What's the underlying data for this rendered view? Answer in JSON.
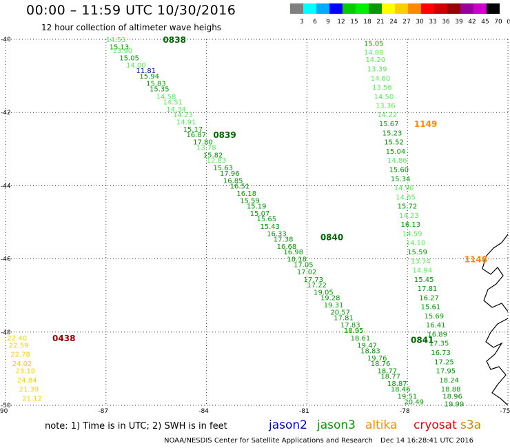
{
  "header": {
    "title": "00:00 – 11:59 UTC 10/30/2016",
    "subtitle": "12 hour collection of altimeter wave heighs"
  },
  "colorbar": {
    "labels": [
      "3",
      "6",
      "9",
      "12",
      "15",
      "18",
      "21",
      "24",
      "27",
      "30",
      "33",
      "36",
      "39",
      "42",
      "45",
      "70",
      "(ft)"
    ],
    "colors": [
      "#808080",
      "#00ffff",
      "#00aaff",
      "#0000ff",
      "#00cc00",
      "#00ee00",
      "#009900",
      "#ffff00",
      "#ffcc00",
      "#ff8800",
      "#ff0000",
      "#cc0000",
      "#990000",
      "#990099",
      "#cc00cc",
      "#000000"
    ]
  },
  "footer": {
    "note": "note: 1) Time is in UTC; 2) SWH is in feet",
    "credit": "NOAA/NESDIS Center for Satellite Applications and Research",
    "timestamp": "Dec 14 16:28:41 UTC 2016"
  },
  "satellites": [
    {
      "name": "jason2",
      "color": "#0000cc"
    },
    {
      "name": "jason3",
      "color": "#009900"
    },
    {
      "name": "altika",
      "color": "#ff8800"
    },
    {
      "name": "cryosat",
      "color": "#ee0000"
    },
    {
      "name": "s3a",
      "color": "#cc8800"
    }
  ],
  "chart_data": {
    "type": "scatter",
    "title": "00:00 – 11:59 UTC 10/30/2016",
    "subtitle": "12 hour collection of altimeter wave heighs",
    "xlabel": "",
    "ylabel": "",
    "xlim": [
      -90,
      -75
    ],
    "ylim": [
      -50,
      -40
    ],
    "xticks": [
      -90,
      -87,
      -84,
      -81,
      -78,
      -75
    ],
    "yticks": [
      -50,
      -48,
      -46,
      -44,
      -42,
      -40
    ],
    "xtick_labels": [
      "-90",
      "-87",
      "-84",
      "-81",
      "-78",
      "-75"
    ],
    "ytick_labels": [
      "-50",
      "-48",
      "-46",
      "-44",
      "-42",
      "-40"
    ],
    "grid": true,
    "passes": [
      {
        "time_labels": [
          {
            "text": "0838",
            "x": -85.3,
            "y": -40.0
          },
          {
            "text": "0839",
            "x": -83.8,
            "y": -42.6
          },
          {
            "text": "0840",
            "x": -80.6,
            "y": -45.4
          },
          {
            "text": "0841",
            "x": -77.9,
            "y": -48.2
          }
        ],
        "label_color": "#006600",
        "points": [
          {
            "v": "14.53",
            "x": -87.0,
            "y": -40.0,
            "c": "#55ee55"
          },
          {
            "v": "15.13",
            "x": -86.9,
            "y": -40.2,
            "c": "#009900"
          },
          {
            "v": "13.90",
            "x": -86.8,
            "y": -40.3,
            "c": "#55ee55"
          },
          {
            "v": "15.05",
            "x": -86.6,
            "y": -40.5,
            "c": "#009900"
          },
          {
            "v": "14.00",
            "x": -86.4,
            "y": -40.7,
            "c": "#55ee55"
          },
          {
            "v": "11.81",
            "x": -86.1,
            "y": -40.85,
            "c": "#0000cc"
          },
          {
            "v": "15.94",
            "x": -86.0,
            "y": -41.0,
            "c": "#009900"
          },
          {
            "v": "15.83",
            "x": -85.8,
            "y": -41.2,
            "c": "#009900"
          },
          {
            "v": "15.35",
            "x": -85.7,
            "y": -41.35,
            "c": "#009900"
          },
          {
            "v": "14.58",
            "x": -85.5,
            "y": -41.55,
            "c": "#55ee55"
          },
          {
            "v": "14.51",
            "x": -85.3,
            "y": -41.7,
            "c": "#55ee55"
          },
          {
            "v": "14.34",
            "x": -85.2,
            "y": -41.9,
            "c": "#55ee55"
          },
          {
            "v": "14.23",
            "x": -85.0,
            "y": -42.05,
            "c": "#55ee55"
          },
          {
            "v": "14.91",
            "x": -84.9,
            "y": -42.25,
            "c": "#55ee55"
          },
          {
            "v": "15.17",
            "x": -84.7,
            "y": -42.45,
            "c": "#009900"
          },
          {
            "v": "16.87",
            "x": -84.6,
            "y": -42.6,
            "c": "#009900"
          },
          {
            "v": "17.80",
            "x": -84.4,
            "y": -42.8,
            "c": "#009900"
          },
          {
            "v": "13.78",
            "x": -84.3,
            "y": -42.95,
            "c": "#55ee55"
          },
          {
            "v": "15.82",
            "x": -84.1,
            "y": -43.15,
            "c": "#009900"
          },
          {
            "v": "12.83",
            "x": -84.0,
            "y": -43.3,
            "c": "#55ee55"
          },
          {
            "v": "15.63",
            "x": -83.8,
            "y": -43.5,
            "c": "#009900"
          },
          {
            "v": "17.96",
            "x": -83.6,
            "y": -43.65,
            "c": "#009900"
          },
          {
            "v": "16.85",
            "x": -83.5,
            "y": -43.85,
            "c": "#009900"
          },
          {
            "v": "16.51",
            "x": -83.3,
            "y": -44.0,
            "c": "#009900"
          },
          {
            "v": "16.18",
            "x": -83.1,
            "y": -44.2,
            "c": "#009900"
          },
          {
            "v": "15.59",
            "x": -83.0,
            "y": -44.4,
            "c": "#009900"
          },
          {
            "v": "15.19",
            "x": -82.8,
            "y": -44.55,
            "c": "#009900"
          },
          {
            "v": "15.07",
            "x": -82.7,
            "y": -44.75,
            "c": "#009900"
          },
          {
            "v": "15.65",
            "x": -82.5,
            "y": -44.9,
            "c": "#009900"
          },
          {
            "v": "15.43",
            "x": -82.4,
            "y": -45.1,
            "c": "#009900"
          },
          {
            "v": "16.33",
            "x": -82.2,
            "y": -45.3,
            "c": "#009900"
          },
          {
            "v": "17.38",
            "x": -82.0,
            "y": -45.45,
            "c": "#009900"
          },
          {
            "v": "16.68",
            "x": -81.9,
            "y": -45.65,
            "c": "#009900"
          },
          {
            "v": "16.98",
            "x": -81.7,
            "y": -45.8,
            "c": "#009900"
          },
          {
            "v": "18.18",
            "x": -81.6,
            "y": -46.0,
            "c": "#009900"
          },
          {
            "v": "17.05",
            "x": -81.4,
            "y": -46.15,
            "c": "#009900"
          },
          {
            "v": "17.02",
            "x": -81.3,
            "y": -46.35,
            "c": "#009900"
          },
          {
            "v": "17.73",
            "x": -81.1,
            "y": -46.55,
            "c": "#009900"
          },
          {
            "v": "17.22",
            "x": -81.0,
            "y": -46.7,
            "c": "#009900"
          },
          {
            "v": "19.05",
            "x": -80.8,
            "y": -46.9,
            "c": "#009900"
          },
          {
            "v": "19.28",
            "x": -80.6,
            "y": -47.05,
            "c": "#009900"
          },
          {
            "v": "19.31",
            "x": -80.5,
            "y": -47.25,
            "c": "#009900"
          },
          {
            "v": "20.57",
            "x": -80.3,
            "y": -47.45,
            "c": "#009900"
          },
          {
            "v": "17.81",
            "x": -80.2,
            "y": -47.6,
            "c": "#009900"
          },
          {
            "v": "17.83",
            "x": -80.0,
            "y": -47.8,
            "c": "#009900"
          },
          {
            "v": "18.95",
            "x": -79.9,
            "y": -47.95,
            "c": "#009900"
          },
          {
            "v": "18.61",
            "x": -79.7,
            "y": -48.15,
            "c": "#009900"
          },
          {
            "v": "19.47",
            "x": -79.5,
            "y": -48.35,
            "c": "#009900"
          },
          {
            "v": "18.83",
            "x": -79.4,
            "y": -48.5,
            "c": "#009900"
          },
          {
            "v": "19.76",
            "x": -79.2,
            "y": -48.7,
            "c": "#009900"
          },
          {
            "v": "18.76",
            "x": -79.1,
            "y": -48.85,
            "c": "#009900"
          },
          {
            "v": "18.77",
            "x": -78.9,
            "y": -49.05,
            "c": "#009900"
          },
          {
            "v": "18.77",
            "x": -78.8,
            "y": -49.2,
            "c": "#009900"
          },
          {
            "v": "18.87",
            "x": -78.6,
            "y": -49.4,
            "c": "#009900"
          },
          {
            "v": "18.46",
            "x": -78.5,
            "y": -49.55,
            "c": "#009900"
          },
          {
            "v": "19.51",
            "x": -78.3,
            "y": -49.75,
            "c": "#009900"
          },
          {
            "v": "20.49",
            "x": -78.1,
            "y": -49.9,
            "c": "#009900"
          }
        ]
      },
      {
        "time_labels": [
          {
            "text": "1149",
            "x": -77.8,
            "y": -42.3
          },
          {
            "text": "1148",
            "x": -76.3,
            "y": -46.0
          }
        ],
        "label_color": "#ff8800",
        "points": [
          {
            "v": "15.05",
            "x": -79.3,
            "y": -40.1,
            "c": "#009900"
          },
          {
            "v": "14.88",
            "x": -79.3,
            "y": -40.35,
            "c": "#55ee55"
          },
          {
            "v": "14.20",
            "x": -79.25,
            "y": -40.55,
            "c": "#55ee55"
          },
          {
            "v": "13.39",
            "x": -79.2,
            "y": -40.8,
            "c": "#55ee55"
          },
          {
            "v": "14.60",
            "x": -79.1,
            "y": -41.05,
            "c": "#55ee55"
          },
          {
            "v": "13.56",
            "x": -79.05,
            "y": -41.3,
            "c": "#55ee55"
          },
          {
            "v": "14.50",
            "x": -79.0,
            "y": -41.55,
            "c": "#55ee55"
          },
          {
            "v": "13.36",
            "x": -78.95,
            "y": -41.8,
            "c": "#55ee55"
          },
          {
            "v": "14.22",
            "x": -78.9,
            "y": -42.05,
            "c": "#55ee55"
          },
          {
            "v": "15.67",
            "x": -78.85,
            "y": -42.3,
            "c": "#009900"
          },
          {
            "v": "15.23",
            "x": -78.75,
            "y": -42.55,
            "c": "#009900"
          },
          {
            "v": "15.52",
            "x": -78.7,
            "y": -42.8,
            "c": "#009900"
          },
          {
            "v": "15.04",
            "x": -78.65,
            "y": -43.05,
            "c": "#009900"
          },
          {
            "v": "14.86",
            "x": -78.6,
            "y": -43.3,
            "c": "#55ee55"
          },
          {
            "v": "15.60",
            "x": -78.55,
            "y": -43.55,
            "c": "#009900"
          },
          {
            "v": "15.34",
            "x": -78.5,
            "y": -43.8,
            "c": "#009900"
          },
          {
            "v": "14.90",
            "x": -78.4,
            "y": -44.05,
            "c": "#55ee55"
          },
          {
            "v": "14.65",
            "x": -78.35,
            "y": -44.3,
            "c": "#55ee55"
          },
          {
            "v": "15.72",
            "x": -78.3,
            "y": -44.55,
            "c": "#009900"
          },
          {
            "v": "14.23",
            "x": -78.25,
            "y": -44.8,
            "c": "#55ee55"
          },
          {
            "v": "16.13",
            "x": -78.2,
            "y": -45.05,
            "c": "#009900"
          },
          {
            "v": "14.59",
            "x": -78.15,
            "y": -45.3,
            "c": "#55ee55"
          },
          {
            "v": "14.10",
            "x": -78.05,
            "y": -45.55,
            "c": "#55ee55"
          },
          {
            "v": "15.59",
            "x": -78.0,
            "y": -45.8,
            "c": "#009900"
          },
          {
            "v": "13.74",
            "x": -77.9,
            "y": -46.05,
            "c": "#55ee55"
          },
          {
            "v": "14.94",
            "x": -77.85,
            "y": -46.3,
            "c": "#55ee55"
          },
          {
            "v": "15.45",
            "x": -77.8,
            "y": -46.55,
            "c": "#009900"
          },
          {
            "v": "17.81",
            "x": -77.7,
            "y": -46.8,
            "c": "#009900"
          },
          {
            "v": "16.27",
            "x": -77.65,
            "y": -47.05,
            "c": "#009900"
          },
          {
            "v": "15.61",
            "x": -77.6,
            "y": -47.3,
            "c": "#009900"
          },
          {
            "v": "15.69",
            "x": -77.5,
            "y": -47.55,
            "c": "#009900"
          },
          {
            "v": "16.41",
            "x": -77.45,
            "y": -47.8,
            "c": "#009900"
          },
          {
            "v": "16.89",
            "x": -77.4,
            "y": -48.05,
            "c": "#009900"
          },
          {
            "v": "17.35",
            "x": -77.35,
            "y": -48.3,
            "c": "#009900"
          },
          {
            "v": "16.73",
            "x": -77.3,
            "y": -48.55,
            "c": "#009900"
          },
          {
            "v": "17.25",
            "x": -77.2,
            "y": -48.8,
            "c": "#009900"
          },
          {
            "v": "17.95",
            "x": -77.15,
            "y": -49.05,
            "c": "#009900"
          },
          {
            "v": "18.24",
            "x": -77.05,
            "y": -49.3,
            "c": "#009900"
          },
          {
            "v": "18.88",
            "x": -77.0,
            "y": -49.55,
            "c": "#009900"
          },
          {
            "v": "18.96",
            "x": -76.95,
            "y": -49.75,
            "c": "#009900"
          },
          {
            "v": "19.99",
            "x": -76.9,
            "y": -49.95,
            "c": "#009900"
          }
        ]
      },
      {
        "time_labels": [
          {
            "text": "0438",
            "x": -88.6,
            "y": -48.15
          }
        ],
        "label_color": "#990000",
        "points": [
          {
            "v": "22.40",
            "x": -89.95,
            "y": -48.15,
            "c": "#ffcc00"
          },
          {
            "v": "22.59",
            "x": -89.9,
            "y": -48.35,
            "c": "#ffcc00"
          },
          {
            "v": "22.78",
            "x": -89.85,
            "y": -48.6,
            "c": "#ffcc00"
          },
          {
            "v": "24.02",
            "x": -89.8,
            "y": -48.85,
            "c": "#ffcc00"
          },
          {
            "v": "23.10",
            "x": -89.7,
            "y": -49.05,
            "c": "#ffcc00"
          },
          {
            "v": "24.84",
            "x": -89.65,
            "y": -49.3,
            "c": "#ffcc00"
          },
          {
            "v": "21.39",
            "x": -89.6,
            "y": -49.55,
            "c": "#ffcc00"
          },
          {
            "v": "21.12",
            "x": -89.5,
            "y": -49.8,
            "c": "#ffcc00"
          }
        ]
      }
    ]
  }
}
